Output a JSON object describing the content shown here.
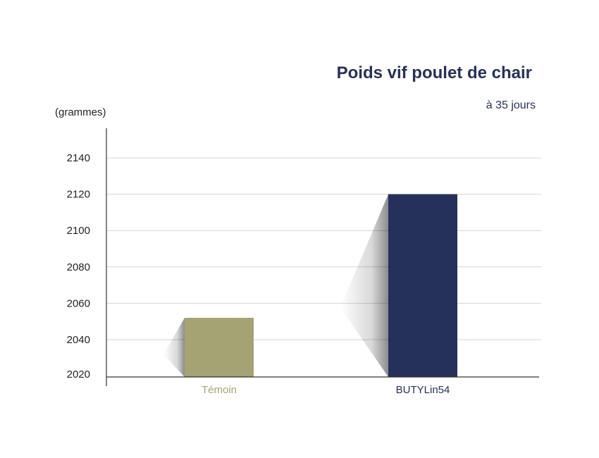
{
  "chart_data": {
    "type": "bar",
    "title": "Poids vif poulet de chair",
    "subtitle": "à 35 jours",
    "ylabel": "(grammes)",
    "xlabel": "",
    "categories": [
      "Témoin",
      "BUTYLin54"
    ],
    "values": [
      2052,
      2120
    ],
    "colors": [
      "#a5a373",
      "#26315b"
    ],
    "ylim": [
      2020,
      2150
    ],
    "yticks": [
      2020,
      2040,
      2060,
      2080,
      2100,
      2120,
      2140
    ],
    "grid": true,
    "legend": "none"
  }
}
